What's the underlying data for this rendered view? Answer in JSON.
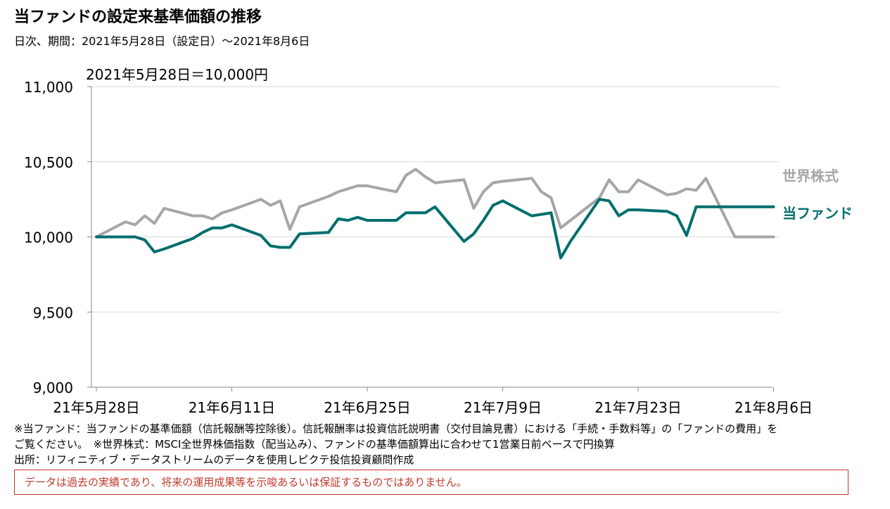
{
  "header": {
    "title": "当ファンドの設定来基準価額の推移",
    "subtitle": "日次、期間：2021年5月28日（設定日）～2021年8月6日"
  },
  "chart_data": {
    "type": "line",
    "annotation": "2021年5月28日＝10,000円",
    "ylim": [
      9000,
      11000
    ],
    "y_ticks": [
      9000,
      9500,
      10000,
      10500,
      11000
    ],
    "y_tick_labels": [
      "9,000",
      "9,500",
      "10,000",
      "10,500",
      "11,000"
    ],
    "x_tick_labels": [
      "21年5月28日",
      "21年6月11日",
      "21年6月25日",
      "21年7月9日",
      "21年7月23日",
      "21年8月6日"
    ],
    "x_ticks": [
      "2021-05-28",
      "2021-06-11",
      "2021-06-25",
      "2021-07-09",
      "2021-07-23",
      "2021-08-06"
    ],
    "grid": true,
    "series": [
      {
        "name": "世界株式",
        "color": "#a6a6a6",
        "x": [
          "2021-05-28",
          "2021-05-31",
          "2021-06-01",
          "2021-06-02",
          "2021-06-03",
          "2021-06-04",
          "2021-06-07",
          "2021-06-08",
          "2021-06-09",
          "2021-06-10",
          "2021-06-11",
          "2021-06-14",
          "2021-06-15",
          "2021-06-16",
          "2021-06-17",
          "2021-06-18",
          "2021-06-21",
          "2021-06-22",
          "2021-06-23",
          "2021-06-24",
          "2021-06-25",
          "2021-06-28",
          "2021-06-29",
          "2021-06-30",
          "2021-07-01",
          "2021-07-02",
          "2021-07-05",
          "2021-07-06",
          "2021-07-07",
          "2021-07-08",
          "2021-07-09",
          "2021-07-12",
          "2021-07-13",
          "2021-07-14",
          "2021-07-15",
          "2021-07-16",
          "2021-07-19",
          "2021-07-20",
          "2021-07-21",
          "2021-07-22",
          "2021-07-23",
          "2021-07-26",
          "2021-07-27",
          "2021-07-28",
          "2021-07-29",
          "2021-07-30",
          "2021-08-02",
          "2021-08-03",
          "2021-08-04",
          "2021-08-05",
          "2021-08-06"
        ],
        "values": [
          10000,
          10100,
          10080,
          10140,
          10090,
          10190,
          10140,
          10140,
          10120,
          10160,
          10180,
          10250,
          10210,
          10240,
          10050,
          10200,
          10270,
          10300,
          10320,
          10340,
          10340,
          10300,
          10410,
          10450,
          10400,
          10360,
          10380,
          10190,
          10300,
          10360,
          10370,
          10390,
          10300,
          10260,
          10060,
          10110,
          10260,
          10380,
          10300,
          10300,
          10380,
          10280,
          10290,
          10320,
          10310,
          10390,
          10000,
          10000,
          10000,
          10000,
          10000
        ]
      },
      {
        "name": "当ファンド",
        "color": "#006e6e",
        "x": [
          "2021-05-28",
          "2021-05-31",
          "2021-06-01",
          "2021-06-02",
          "2021-06-03",
          "2021-06-04",
          "2021-06-07",
          "2021-06-08",
          "2021-06-09",
          "2021-06-10",
          "2021-06-11",
          "2021-06-14",
          "2021-06-15",
          "2021-06-16",
          "2021-06-17",
          "2021-06-18",
          "2021-06-21",
          "2021-06-22",
          "2021-06-23",
          "2021-06-24",
          "2021-06-25",
          "2021-06-28",
          "2021-06-29",
          "2021-06-30",
          "2021-07-01",
          "2021-07-02",
          "2021-07-05",
          "2021-07-06",
          "2021-07-07",
          "2021-07-08",
          "2021-07-09",
          "2021-07-12",
          "2021-07-13",
          "2021-07-14",
          "2021-07-15",
          "2021-07-16",
          "2021-07-19",
          "2021-07-20",
          "2021-07-21",
          "2021-07-22",
          "2021-07-23",
          "2021-07-26",
          "2021-07-27",
          "2021-07-28",
          "2021-07-29",
          "2021-07-30",
          "2021-08-02",
          "2021-08-03",
          "2021-08-04",
          "2021-08-05",
          "2021-08-06"
        ],
        "values": [
          10000,
          10000,
          10000,
          9980,
          9900,
          9920,
          9990,
          10030,
          10060,
          10060,
          10080,
          10010,
          9940,
          9930,
          9930,
          10020,
          10030,
          10120,
          10110,
          10130,
          10110,
          10110,
          10160,
          10160,
          10160,
          10200,
          9970,
          10020,
          10110,
          10210,
          10240,
          10140,
          10150,
          10160,
          9860,
          9970,
          10250,
          10240,
          10140,
          10180,
          10180,
          10170,
          10140,
          10010,
          10200,
          10200,
          10200,
          10200,
          10200,
          10200,
          10200
        ]
      }
    ]
  },
  "notes": [
    "※当ファンド：当ファンドの基準価額（信託報酬等控除後）。信託報酬率は投資信託説明書（交付目論見書）における「手続・手数料等」の「ファンドの費用」を",
    "ご覧ください。　※世界株式：MSCI全世界株価指数（配当込み）、ファンドの基準価額算出に合わせて1営業日前ベースで円換算",
    "出所：リフィニティブ・データストリームのデータを使用しピクテ投信投資顧問作成"
  ],
  "disclaimer": "データは過去の実績であり、将来の運用成果等を示唆あるいは保証するものではありません。"
}
